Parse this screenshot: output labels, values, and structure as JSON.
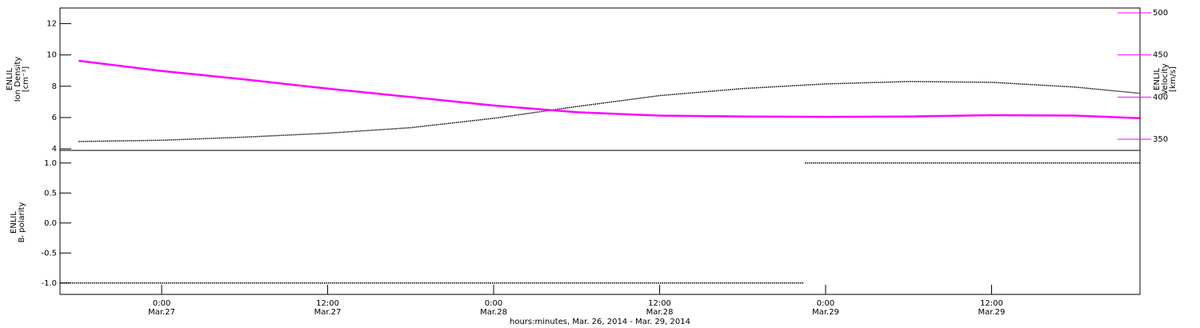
{
  "chart_data": [
    {
      "type": "line",
      "ylabel": [
        "ENLIL",
        "Ion Density",
        "[cm⁻³]"
      ],
      "y2label": [
        "ENLIL",
        "Velocity",
        "[km/s]"
      ],
      "x": [
        18,
        24,
        30,
        36,
        42,
        48,
        54,
        60,
        66,
        72,
        78,
        84,
        90,
        94.7
      ],
      "xlim": [
        16.65,
        94.73
      ],
      "ylim": [
        3.9,
        13.0
      ],
      "yticks": [
        4,
        6,
        8,
        10,
        12
      ],
      "y2lim": [
        336.7,
        505.7
      ],
      "y2ticks": [
        350,
        400,
        450,
        500
      ],
      "y2color": "#ff00ff",
      "series": [
        {
          "color": "#000000",
          "values": [
            4.47,
            4.55,
            4.75,
            5.0,
            5.35,
            5.95,
            6.7,
            7.4,
            7.85,
            8.15,
            8.3,
            8.25,
            7.95,
            7.55
          ]
        },
        {
          "color": "#ff00ff",
          "axis": "y2",
          "values": [
            443,
            431,
            421,
            410,
            400,
            390,
            382,
            378,
            377,
            376.5,
            377,
            378.5,
            378,
            375
          ]
        }
      ]
    },
    {
      "type": "line",
      "ylabel": [
        "ENLIL",
        "Bᵣ polarity"
      ],
      "xlabel": "hours:minutes, Mar. 26, 2014 - Mar. 29, 2014",
      "x": [
        16.65,
        70.4,
        70.45,
        70.5,
        94.73
      ],
      "xlim": [
        16.65,
        94.73
      ],
      "xticks": [
        {
          "value": 24,
          "label": "0:00"
        },
        {
          "value": 36,
          "label": "12:00"
        },
        {
          "value": 48,
          "label": "0:00"
        },
        {
          "value": 60,
          "label": "12:00"
        },
        {
          "value": 72,
          "label": "0:00"
        },
        {
          "value": 84,
          "label": "12:00"
        }
      ],
      "xtick_dates": [
        "Mar.27",
        "Mar.27",
        "Mar.28",
        "Mar.28",
        "Mar.29",
        "Mar.29"
      ],
      "ylim": [
        -1.19,
        1.21
      ],
      "yticks": [
        {
          "value": -1,
          "label": "-1.0"
        },
        {
          "value": -0.5,
          "label": "-0.5"
        },
        {
          "value": 0,
          "label": "0.0"
        },
        {
          "value": 0.5,
          "label": "0.5"
        },
        {
          "value": 1,
          "label": "1.0"
        }
      ],
      "series": [
        {
          "color": "#000000",
          "values": [
            -1,
            -1,
            null,
            1,
            1
          ]
        }
      ]
    }
  ]
}
